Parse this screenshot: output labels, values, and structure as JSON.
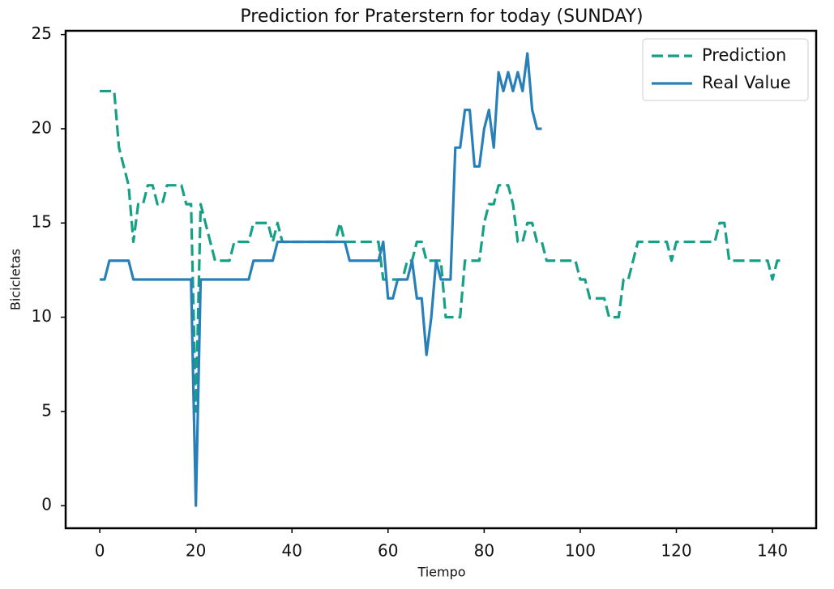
{
  "chart_data": {
    "type": "line",
    "title": "Prediction for Praterstern for today (SUNDAY)",
    "x_label": "Tiempo",
    "y_label": "Bicicletas",
    "xlim": [
      -7.1,
      149.1
    ],
    "xticks": [
      0,
      20,
      40,
      60,
      80,
      100,
      120,
      140
    ],
    "ylim": [
      -1.2,
      25.2
    ],
    "yticks": [
      0,
      5,
      10,
      15,
      20,
      25
    ],
    "legend": "upper right",
    "series": [
      {
        "name": "Prediction",
        "color": "#16a085",
        "dashed": true,
        "x": [
          0,
          1,
          2,
          3,
          4,
          5,
          6,
          7,
          8,
          9,
          10,
          11,
          12,
          13,
          14,
          15,
          16,
          17,
          18,
          19,
          20,
          21,
          22,
          23,
          24,
          25,
          26,
          27,
          28,
          29,
          30,
          31,
          32,
          33,
          34,
          35,
          36,
          37,
          38,
          39,
          40,
          41,
          42,
          43,
          44,
          45,
          46,
          47,
          48,
          49,
          50,
          51,
          52,
          53,
          54,
          55,
          56,
          57,
          58,
          59,
          60,
          61,
          62,
          63,
          64,
          65,
          66,
          67,
          68,
          69,
          70,
          71,
          72,
          73,
          74,
          75,
          76,
          77,
          78,
          79,
          80,
          81,
          82,
          83,
          84,
          85,
          86,
          87,
          88,
          89,
          90,
          91,
          92,
          93,
          94,
          95,
          96,
          97,
          98,
          99,
          100,
          101,
          102,
          103,
          104,
          105,
          106,
          107,
          108,
          109,
          110,
          111,
          112,
          113,
          114,
          115,
          116,
          117,
          118,
          119,
          120,
          121,
          122,
          123,
          124,
          125,
          126,
          127,
          128,
          129,
          130,
          131,
          132,
          133,
          134,
          135,
          136,
          137,
          138,
          139,
          140,
          141,
          142
        ],
        "values": [
          22,
          22,
          22,
          22,
          19,
          18,
          17,
          14,
          16,
          16,
          17,
          17,
          16,
          16,
          17,
          17,
          17,
          17,
          16,
          16,
          5,
          16,
          15,
          14,
          13,
          13,
          13,
          13,
          14,
          14,
          14,
          14,
          15,
          15,
          15,
          15,
          14,
          15,
          14,
          14,
          14,
          14,
          14,
          14,
          14,
          14,
          14,
          14,
          14,
          14,
          15,
          14,
          14,
          14,
          14,
          14,
          14,
          14,
          14,
          12,
          12,
          12,
          12,
          12,
          13,
          13,
          14,
          14,
          13,
          13,
          13,
          13,
          10,
          10,
          10,
          10,
          13,
          13,
          13,
          13,
          15,
          16,
          16,
          17,
          17,
          17,
          16,
          14,
          14,
          15,
          15,
          14,
          14,
          13,
          13,
          13,
          13,
          13,
          13,
          13,
          12,
          12,
          11,
          11,
          11,
          11,
          10,
          10,
          10,
          12,
          12,
          13,
          14,
          14,
          14,
          14,
          14,
          14,
          14,
          13,
          14,
          14,
          14,
          14,
          14,
          14,
          14,
          14,
          14,
          15,
          15,
          13,
          13,
          13,
          13,
          13,
          13,
          13,
          13,
          13,
          12,
          13,
          13
        ]
      },
      {
        "name": "Real Value",
        "color": "#2980b9",
        "dashed": false,
        "x": [
          0,
          1,
          2,
          3,
          4,
          5,
          6,
          7,
          8,
          9,
          10,
          11,
          12,
          13,
          14,
          15,
          16,
          17,
          18,
          19,
          20,
          21,
          22,
          23,
          24,
          25,
          26,
          27,
          28,
          29,
          30,
          31,
          32,
          33,
          34,
          35,
          36,
          37,
          38,
          39,
          40,
          41,
          42,
          43,
          44,
          45,
          46,
          47,
          48,
          49,
          50,
          51,
          52,
          53,
          54,
          55,
          56,
          57,
          58,
          59,
          60,
          61,
          62,
          63,
          64,
          65,
          66,
          67,
          68,
          69,
          70,
          71,
          72,
          73,
          74,
          75,
          76,
          77,
          78,
          79,
          80,
          81,
          82,
          83,
          84,
          85,
          86,
          87,
          88,
          89,
          90,
          91,
          92
        ],
        "values": [
          12,
          12,
          13,
          13,
          13,
          13,
          13,
          12,
          12,
          12,
          12,
          12,
          12,
          12,
          12,
          12,
          12,
          12,
          12,
          12,
          0,
          12,
          12,
          12,
          12,
          12,
          12,
          12,
          12,
          12,
          12,
          12,
          13,
          13,
          13,
          13,
          13,
          14,
          14,
          14,
          14,
          14,
          14,
          14,
          14,
          14,
          14,
          14,
          14,
          14,
          14,
          14,
          13,
          13,
          13,
          13,
          13,
          13,
          13,
          14,
          11,
          11,
          12,
          12,
          12,
          13,
          11,
          11,
          8,
          10,
          13,
          12,
          12,
          12,
          19,
          19,
          21,
          21,
          18,
          18,
          20,
          21,
          19,
          23,
          22,
          23,
          22,
          23,
          22,
          24,
          21,
          20,
          20
        ]
      }
    ]
  }
}
